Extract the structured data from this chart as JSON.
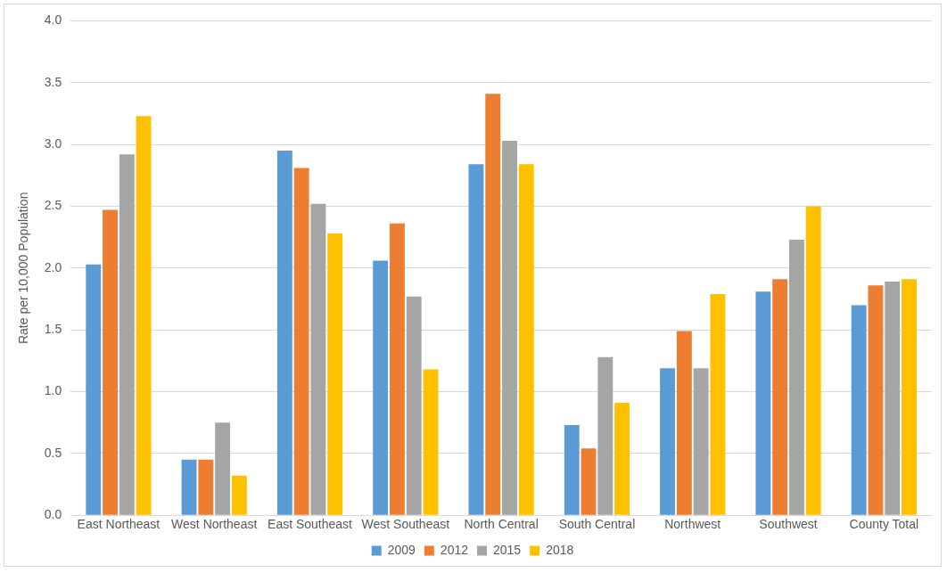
{
  "chart_data": {
    "type": "bar",
    "ylabel": "Rate per 10,000 Population",
    "categories": [
      "East Northeast",
      "West Northeast",
      "East Southeast",
      "West Southeast",
      "North Central",
      "South Central",
      "Northwest",
      "Southwest",
      "County Total"
    ],
    "series": [
      {
        "name": "2009",
        "color": "#5b9bd5",
        "values": [
          2.03,
          0.45,
          2.95,
          2.06,
          2.84,
          0.73,
          1.19,
          1.81,
          1.7
        ]
      },
      {
        "name": "2012",
        "color": "#ed7d31",
        "values": [
          2.47,
          0.45,
          2.81,
          2.36,
          3.41,
          0.54,
          1.49,
          1.91,
          1.86
        ]
      },
      {
        "name": "2015",
        "color": "#a5a5a5",
        "values": [
          2.92,
          0.75,
          2.52,
          1.77,
          3.03,
          1.28,
          1.19,
          2.23,
          1.89
        ]
      },
      {
        "name": "2018",
        "color": "#ffc000",
        "values": [
          3.23,
          0.32,
          2.28,
          1.18,
          2.84,
          0.91,
          1.79,
          2.5,
          1.91
        ]
      }
    ],
    "ylim": [
      0,
      4
    ],
    "yticks": [
      {
        "value": 0,
        "label": "0.0"
      },
      {
        "value": 0.5,
        "label": "0.5"
      },
      {
        "value": 1,
        "label": "1.0"
      },
      {
        "value": 1.5,
        "label": "1.5"
      },
      {
        "value": 2,
        "label": "2.0"
      },
      {
        "value": 2.5,
        "label": "2.5"
      },
      {
        "value": 3,
        "label": "3.0"
      },
      {
        "value": 3.5,
        "label": "3.5"
      },
      {
        "value": 4,
        "label": "4.0"
      }
    ],
    "grid": "y",
    "legend": "bottom"
  }
}
